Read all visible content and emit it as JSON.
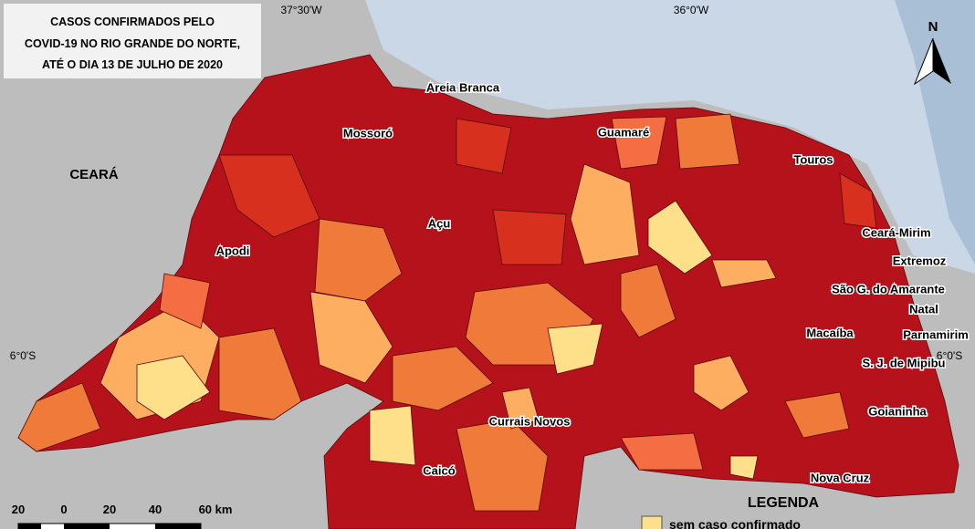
{
  "title": {
    "lines": [
      "CASOS CONFIRMADOS PELO",
      "COVID-19 NO RIO GRANDE DO NORTE,",
      "ATÉ O DIA 13 DE JULHO DE 2020"
    ]
  },
  "coordinates": {
    "lon_west": "37°30'W",
    "lon_east": "36°0'W",
    "lat_west": "6°0'S",
    "lat_east": "6°0'S"
  },
  "regions": {
    "ceara": "CEARÁ"
  },
  "cities": [
    "Areia Branca",
    "Mossoró",
    "Guamaré",
    "Touros",
    "Açu",
    "Apodi",
    "Ceará-Mirim",
    "Extremoz",
    "São G. do Amarante",
    "Natal",
    "Macaíba",
    "Parnamirim",
    "S. J. de Mipibu",
    "Goianinha",
    "Currais Novos",
    "Caicó",
    "Nova Cruz"
  ],
  "north_arrow": "N",
  "scale_bar": {
    "labels": [
      "20",
      "0",
      "20",
      "40",
      "60 km"
    ]
  },
  "legend": {
    "title": "LEGENDA",
    "items": [
      "sem caso confirmado"
    ]
  }
}
